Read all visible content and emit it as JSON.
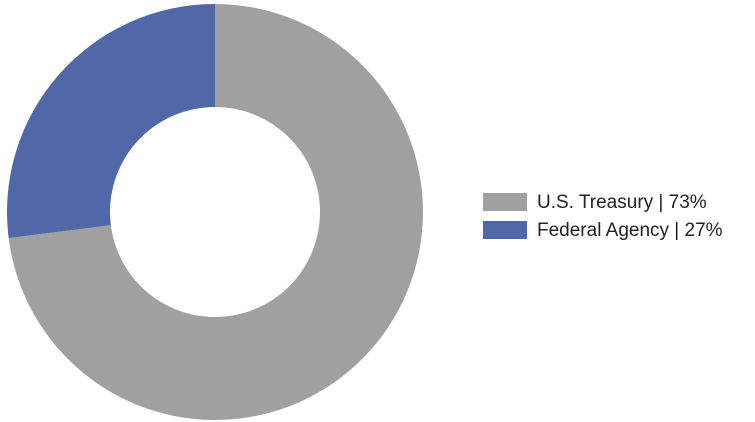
{
  "chart_data": {
    "type": "donut",
    "categories": [
      "U.S. Treasury | 73%",
      "Federal Agency | 27%"
    ],
    "values": [
      73,
      27
    ],
    "colors": [
      "#a0a0a0",
      "#5068a8"
    ],
    "legend": "right"
  }
}
